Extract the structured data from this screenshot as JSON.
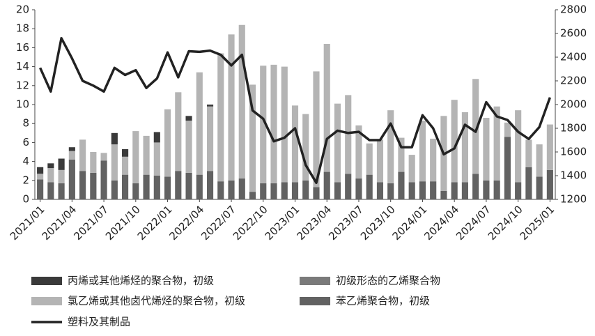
{
  "chart_data": {
    "type": "bar_line",
    "categories": [
      "2021/01",
      null,
      null,
      "2021/04",
      null,
      null,
      "2021/07",
      null,
      null,
      "2021/10",
      null,
      null,
      "2022/01",
      null,
      null,
      "2022/04",
      null,
      null,
      "2022/07",
      null,
      null,
      "2022/10",
      null,
      null,
      "2023/01",
      null,
      null,
      "2023/04",
      null,
      null,
      "2023/07",
      null,
      null,
      "2023/10",
      null,
      null,
      "2024/01",
      null,
      null,
      "2024/04",
      null,
      null,
      "2024/07",
      null,
      null,
      "2024/10",
      null,
      null,
      "2025/01"
    ],
    "ylim": [
      0,
      20
    ],
    "yticks": [
      0,
      2,
      4,
      6,
      8,
      10,
      12,
      14,
      16,
      18,
      20
    ],
    "y2lim": [
      1200,
      2800
    ],
    "y2ticks": [
      1200,
      1400,
      1600,
      1800,
      2000,
      2200,
      2400,
      2600,
      2800
    ],
    "series": [
      {
        "name": "丙烯或其他烯烃的聚合物，初级",
        "color": "#3a3a3a",
        "values": [
          0.7,
          0.5,
          1.2,
          0.4,
          0,
          0,
          0,
          1.2,
          0.8,
          0,
          0,
          1.1,
          0,
          0,
          0.5,
          0,
          0.2,
          0,
          0,
          0,
          0,
          0,
          0,
          0,
          0,
          0,
          0,
          0,
          0,
          0,
          0,
          0,
          0,
          0,
          0,
          0,
          0,
          0,
          0,
          0,
          0,
          0,
          0,
          0,
          0,
          0,
          0,
          0,
          0
        ]
      },
      {
        "name": "初级形态的乙烯聚合物",
        "color": "#7a7a7a",
        "values": [
          0,
          0,
          0,
          0,
          0,
          0,
          0,
          0,
          0,
          0,
          0,
          0,
          0,
          0,
          0,
          0,
          0,
          0,
          0,
          0,
          0,
          0,
          0,
          0,
          0,
          0,
          0,
          0,
          0,
          0,
          0,
          0,
          0,
          0,
          0,
          0,
          0,
          0,
          0,
          0,
          0,
          0,
          0,
          0,
          0,
          0,
          0,
          0,
          0
        ]
      },
      {
        "name": "氯乙烯或其他卤代烯烃的聚合物，初级",
        "color": "#b4b4b4",
        "values": [
          0.6,
          1.5,
          1.4,
          0.9,
          3.3,
          2.2,
          0.8,
          3.8,
          1.9,
          5.5,
          4.1,
          3.5,
          7.1,
          8.3,
          5.5,
          10.8,
          6.8,
          13.5,
          15.4,
          16.2,
          11.3,
          12.4,
          12.5,
          12.2,
          8.1,
          7.0,
          12.2,
          13.5,
          8.3,
          8.3,
          5.6,
          3.3,
          4.5,
          7.7,
          3.6,
          2.9,
          6.4,
          4.5,
          7.9,
          8.7,
          7.4,
          10.0,
          6.6,
          7.8,
          1.5,
          7.6,
          2.9,
          3.4,
          4.8
        ]
      },
      {
        "name": "苯乙烯聚合物，初级",
        "color": "#626262",
        "values": [
          2.1,
          1.8,
          1.7,
          4.2,
          3.0,
          2.8,
          4.1,
          2.0,
          2.6,
          1.7,
          2.6,
          2.5,
          2.4,
          3.0,
          2.8,
          2.6,
          3.0,
          1.9,
          2.0,
          2.2,
          0.8,
          1.7,
          1.7,
          1.8,
          1.8,
          2.0,
          1.3,
          2.9,
          1.8,
          2.7,
          2.2,
          2.6,
          1.8,
          1.7,
          2.9,
          1.8,
          1.9,
          1.9,
          0.9,
          1.8,
          1.8,
          2.7,
          2.0,
          2.0,
          6.6,
          1.8,
          3.4,
          2.4,
          3.1
        ]
      },
      {
        "name": "塑料及其制品",
        "color": "#222222",
        "axis": "y2",
        "type": "line",
        "values": [
          2310,
          2110,
          2560,
          2390,
          2200,
          2160,
          2110,
          2310,
          2250,
          2290,
          2140,
          2220,
          2440,
          2230,
          2450,
          2445,
          2455,
          2420,
          2330,
          2420,
          1950,
          1880,
          1690,
          1720,
          1800,
          1490,
          1340,
          1710,
          1780,
          1760,
          1770,
          1700,
          1700,
          1840,
          1640,
          1640,
          1910,
          1800,
          1580,
          1630,
          1830,
          1770,
          2020,
          1900,
          1870,
          1770,
          1710,
          1810,
          2060
        ]
      }
    ]
  }
}
